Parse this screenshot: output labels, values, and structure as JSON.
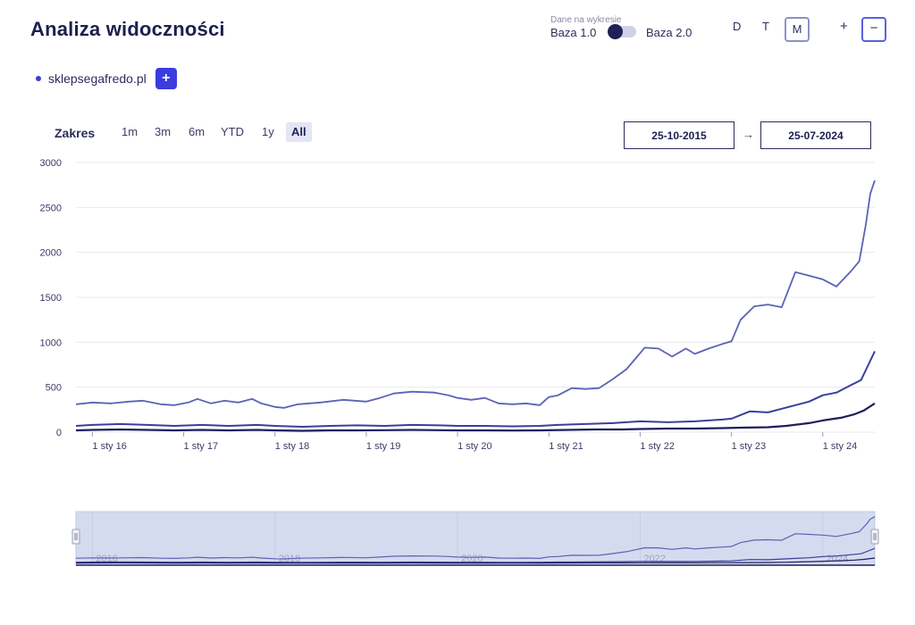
{
  "header": {
    "title": "Analiza widoczności",
    "toggle_caption": "Dane na wykresie",
    "base_left": "Baza 1.0",
    "base_right": "Baza 2.0",
    "period_d": "D",
    "period_t": "T",
    "period_m": "M",
    "zoom_plus": "+",
    "zoom_minus": "−"
  },
  "domain": {
    "name": "sklepsegafredo.pl"
  },
  "add_label": "+",
  "range": {
    "label": "Zakres",
    "buttons": [
      "1m",
      "3m",
      "6m",
      "YTD",
      "1y",
      "All"
    ],
    "active": "All",
    "from": "25-10-2015",
    "arrow": "→",
    "to": "25-07-2024"
  },
  "colors": {
    "series_top": "#5b63b5",
    "series_mid": "#3a3f9a",
    "series_bottom": "#1d1f5e",
    "grid": "#e8e8ee",
    "navigator_fill": "#d5dbef"
  },
  "chart_data": {
    "type": "line",
    "ylim": [
      0,
      3000
    ],
    "yticks": [
      0,
      500,
      1000,
      1500,
      2000,
      2500,
      3000
    ],
    "xlim": [
      2015.82,
      2024.57
    ],
    "xticks": [
      {
        "x": 2016,
        "label": "1 sty 16"
      },
      {
        "x": 2017,
        "label": "1 sty 17"
      },
      {
        "x": 2018,
        "label": "1 sty 18"
      },
      {
        "x": 2019,
        "label": "1 sty 19"
      },
      {
        "x": 2020,
        "label": "1 sty 20"
      },
      {
        "x": 2021,
        "label": "1 sty 21"
      },
      {
        "x": 2022,
        "label": "1 sty 22"
      },
      {
        "x": 2023,
        "label": "1 sty 23"
      },
      {
        "x": 2024,
        "label": "1 sty 24"
      }
    ],
    "navigator_labels": [
      {
        "x": 2016,
        "label": "2016"
      },
      {
        "x": 2018,
        "label": "2018"
      },
      {
        "x": 2020,
        "label": "2020"
      },
      {
        "x": 2022,
        "label": "2022"
      },
      {
        "x": 2024,
        "label": "2024"
      }
    ],
    "series": [
      {
        "name": "top",
        "points": [
          [
            2015.82,
            310
          ],
          [
            2016.0,
            330
          ],
          [
            2016.2,
            320
          ],
          [
            2016.4,
            340
          ],
          [
            2016.55,
            350
          ],
          [
            2016.75,
            310
          ],
          [
            2016.9,
            300
          ],
          [
            2017.05,
            330
          ],
          [
            2017.15,
            370
          ],
          [
            2017.3,
            320
          ],
          [
            2017.45,
            350
          ],
          [
            2017.6,
            330
          ],
          [
            2017.75,
            370
          ],
          [
            2017.85,
            320
          ],
          [
            2018.0,
            280
          ],
          [
            2018.1,
            270
          ],
          [
            2018.25,
            310
          ],
          [
            2018.5,
            330
          ],
          [
            2018.75,
            360
          ],
          [
            2019.0,
            340
          ],
          [
            2019.15,
            380
          ],
          [
            2019.3,
            430
          ],
          [
            2019.5,
            450
          ],
          [
            2019.75,
            440
          ],
          [
            2019.9,
            410
          ],
          [
            2020.0,
            380
          ],
          [
            2020.15,
            360
          ],
          [
            2020.3,
            380
          ],
          [
            2020.45,
            320
          ],
          [
            2020.6,
            310
          ],
          [
            2020.75,
            320
          ],
          [
            2020.9,
            300
          ],
          [
            2021.0,
            390
          ],
          [
            2021.1,
            410
          ],
          [
            2021.25,
            490
          ],
          [
            2021.4,
            480
          ],
          [
            2021.55,
            490
          ],
          [
            2021.7,
            590
          ],
          [
            2021.85,
            700
          ],
          [
            2021.95,
            820
          ],
          [
            2022.05,
            940
          ],
          [
            2022.2,
            930
          ],
          [
            2022.35,
            840
          ],
          [
            2022.5,
            930
          ],
          [
            2022.6,
            870
          ],
          [
            2022.75,
            930
          ],
          [
            2022.9,
            980
          ],
          [
            2023.0,
            1010
          ],
          [
            2023.1,
            1250
          ],
          [
            2023.25,
            1400
          ],
          [
            2023.4,
            1420
          ],
          [
            2023.55,
            1390
          ],
          [
            2023.7,
            1780
          ],
          [
            2023.85,
            1740
          ],
          [
            2024.0,
            1700
          ],
          [
            2024.15,
            1620
          ],
          [
            2024.3,
            1780
          ],
          [
            2024.4,
            1900
          ],
          [
            2024.47,
            2300
          ],
          [
            2024.52,
            2650
          ],
          [
            2024.57,
            2800
          ]
        ]
      },
      {
        "name": "mid",
        "points": [
          [
            2015.82,
            70
          ],
          [
            2016.0,
            80
          ],
          [
            2016.3,
            90
          ],
          [
            2016.6,
            80
          ],
          [
            2016.9,
            70
          ],
          [
            2017.2,
            80
          ],
          [
            2017.5,
            70
          ],
          [
            2017.8,
            80
          ],
          [
            2018.0,
            70
          ],
          [
            2018.3,
            60
          ],
          [
            2018.6,
            70
          ],
          [
            2018.9,
            75
          ],
          [
            2019.2,
            70
          ],
          [
            2019.5,
            80
          ],
          [
            2019.8,
            75
          ],
          [
            2020.0,
            70
          ],
          [
            2020.3,
            70
          ],
          [
            2020.6,
            65
          ],
          [
            2020.9,
            70
          ],
          [
            2021.1,
            80
          ],
          [
            2021.4,
            90
          ],
          [
            2021.7,
            100
          ],
          [
            2022.0,
            120
          ],
          [
            2022.3,
            110
          ],
          [
            2022.6,
            120
          ],
          [
            2022.9,
            140
          ],
          [
            2023.0,
            150
          ],
          [
            2023.2,
            230
          ],
          [
            2023.4,
            220
          ],
          [
            2023.55,
            260
          ],
          [
            2023.7,
            300
          ],
          [
            2023.85,
            340
          ],
          [
            2024.0,
            410
          ],
          [
            2024.15,
            440
          ],
          [
            2024.3,
            520
          ],
          [
            2024.42,
            580
          ],
          [
            2024.5,
            750
          ],
          [
            2024.57,
            900
          ]
        ]
      },
      {
        "name": "bottom",
        "points": [
          [
            2015.82,
            20
          ],
          [
            2016.0,
            25
          ],
          [
            2016.3,
            30
          ],
          [
            2016.6,
            25
          ],
          [
            2016.9,
            20
          ],
          [
            2017.2,
            25
          ],
          [
            2017.5,
            20
          ],
          [
            2017.8,
            25
          ],
          [
            2018.0,
            20
          ],
          [
            2018.3,
            15
          ],
          [
            2018.6,
            20
          ],
          [
            2018.9,
            20
          ],
          [
            2019.2,
            22
          ],
          [
            2019.5,
            25
          ],
          [
            2019.8,
            22
          ],
          [
            2020.0,
            20
          ],
          [
            2020.3,
            20
          ],
          [
            2020.6,
            18
          ],
          [
            2020.9,
            20
          ],
          [
            2021.2,
            25
          ],
          [
            2021.5,
            30
          ],
          [
            2021.8,
            30
          ],
          [
            2022.0,
            35
          ],
          [
            2022.3,
            40
          ],
          [
            2022.6,
            40
          ],
          [
            2022.9,
            45
          ],
          [
            2023.1,
            50
          ],
          [
            2023.4,
            55
          ],
          [
            2023.6,
            70
          ],
          [
            2023.85,
            100
          ],
          [
            2024.0,
            130
          ],
          [
            2024.2,
            160
          ],
          [
            2024.35,
            200
          ],
          [
            2024.45,
            240
          ],
          [
            2024.57,
            320
          ]
        ]
      }
    ]
  }
}
